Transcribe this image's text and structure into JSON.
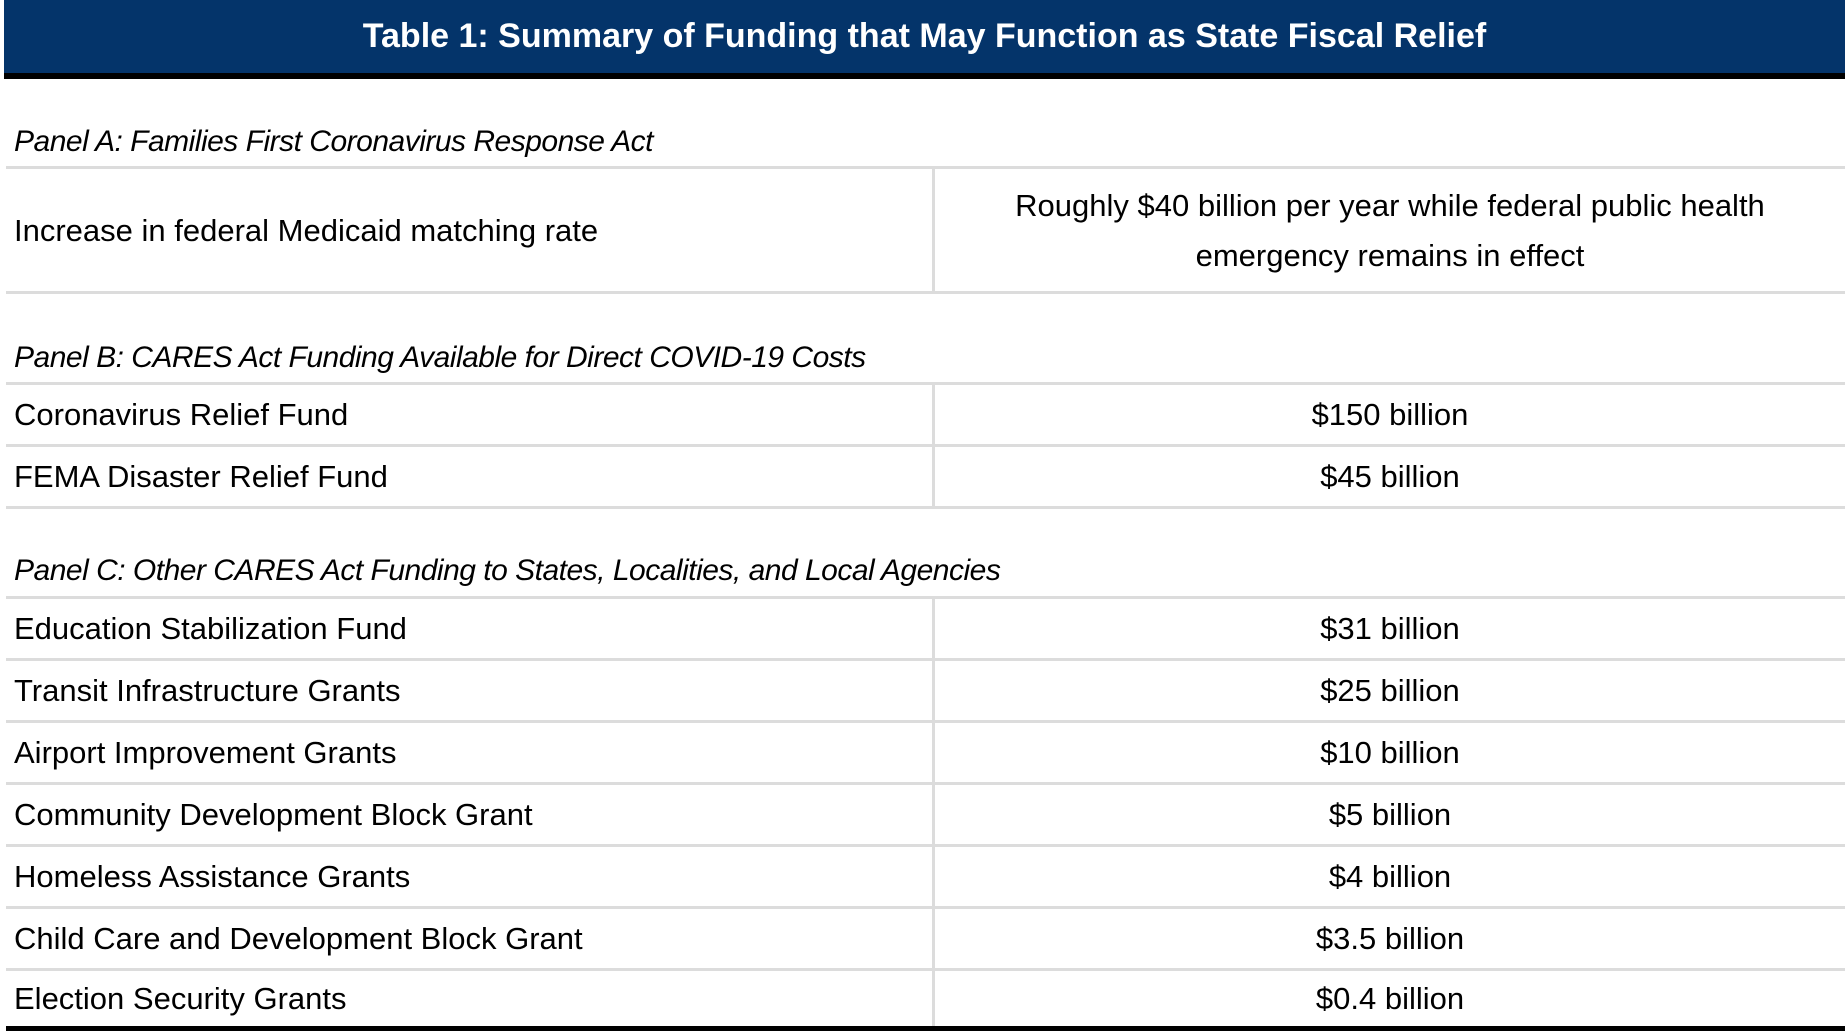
{
  "title": "Table 1: Summary of Funding that May Function as State Fiscal Relief",
  "colors": {
    "header_bg": "#04346a",
    "header_text": "#ffffff",
    "rule": "#dcdcdc"
  },
  "panels": [
    {
      "label": "Panel A: Families First Coronavirus Response Act",
      "rows": [
        {
          "item": "Increase in federal Medicaid matching rate",
          "amount": "Roughly $40 billion per year while federal public health emergency remains in effect"
        }
      ]
    },
    {
      "label": "Panel B: CARES Act Funding Available for Direct COVID-19 Costs",
      "rows": [
        {
          "item": "Coronavirus Relief Fund",
          "amount": "$150 billion"
        },
        {
          "item": "FEMA Disaster Relief Fund",
          "amount": "$45 billion"
        }
      ]
    },
    {
      "label": "Panel C: Other CARES Act Funding to States, Localities, and Local Agencies",
      "rows": [
        {
          "item": "Education Stabilization Fund",
          "amount": "$31 billion"
        },
        {
          "item": "Transit Infrastructure Grants",
          "amount": "$25 billion"
        },
        {
          "item": "Airport Improvement Grants",
          "amount": "$10 billion"
        },
        {
          "item": "Community Development Block Grant",
          "amount": "$5 billion"
        },
        {
          "item": "Homeless Assistance Grants",
          "amount": "$4 billion"
        },
        {
          "item": "Child Care and Development Block Grant",
          "amount": "$3.5 billion"
        },
        {
          "item": "Election Security Grants",
          "amount": "$0.4 billion"
        }
      ]
    }
  ]
}
